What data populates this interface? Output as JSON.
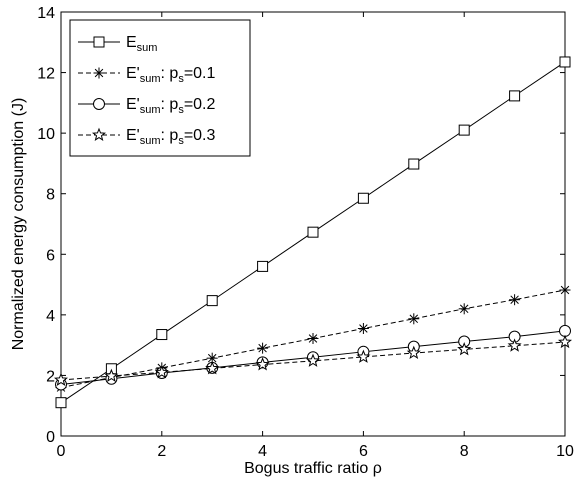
{
  "chart_data": {
    "type": "line",
    "xlabel": "Bogus traffic ratio ρ",
    "ylabel": "Normalized energy consumption (J)",
    "xlim": [
      0,
      10
    ],
    "ylim": [
      0,
      14
    ],
    "x_ticks": [
      "0",
      "2",
      "4",
      "6",
      "8",
      "10"
    ],
    "y_ticks": [
      "0",
      "2",
      "4",
      "6",
      "8",
      "10",
      "12",
      "14"
    ],
    "grid": false,
    "legend_position": "top-left",
    "x": [
      0,
      1,
      2,
      3,
      4,
      5,
      6,
      7,
      8,
      9,
      10
    ],
    "series": [
      {
        "name": "E_sum",
        "legend": {
          "base": "E",
          "sub": "sum",
          "rest": ""
        },
        "marker": "square",
        "line": "solid",
        "values": [
          1.1,
          2.22,
          3.35,
          4.47,
          5.6,
          6.73,
          7.85,
          8.98,
          10.1,
          11.23,
          12.35
        ]
      },
      {
        "name": "E'_sum: p_s=0.1",
        "legend": {
          "base": "E'",
          "sub": "sum",
          "mid": ": p",
          "sub2": "s",
          "rest": "=0.1"
        },
        "marker": "asterisk",
        "line": "dashed",
        "values": [
          1.6,
          1.93,
          2.25,
          2.57,
          2.9,
          3.22,
          3.55,
          3.87,
          4.2,
          4.5,
          4.82
        ]
      },
      {
        "name": "E'_sum: p_s=0.2",
        "legend": {
          "base": "E'",
          "sub": "sum",
          "mid": ": p",
          "sub2": "s",
          "rest": "=0.2"
        },
        "marker": "circle",
        "line": "solid",
        "values": [
          1.7,
          1.89,
          2.08,
          2.25,
          2.43,
          2.6,
          2.78,
          2.95,
          3.12,
          3.28,
          3.47
        ]
      },
      {
        "name": "E'_sum: p_s=0.3",
        "legend": {
          "base": "E'",
          "sub": "sum",
          "mid": ": p",
          "sub2": "s",
          "rest": "=0.3"
        },
        "marker": "star",
        "line": "dashed",
        "values": [
          1.85,
          1.98,
          2.1,
          2.23,
          2.36,
          2.48,
          2.61,
          2.74,
          2.86,
          2.98,
          3.1
        ]
      }
    ]
  }
}
